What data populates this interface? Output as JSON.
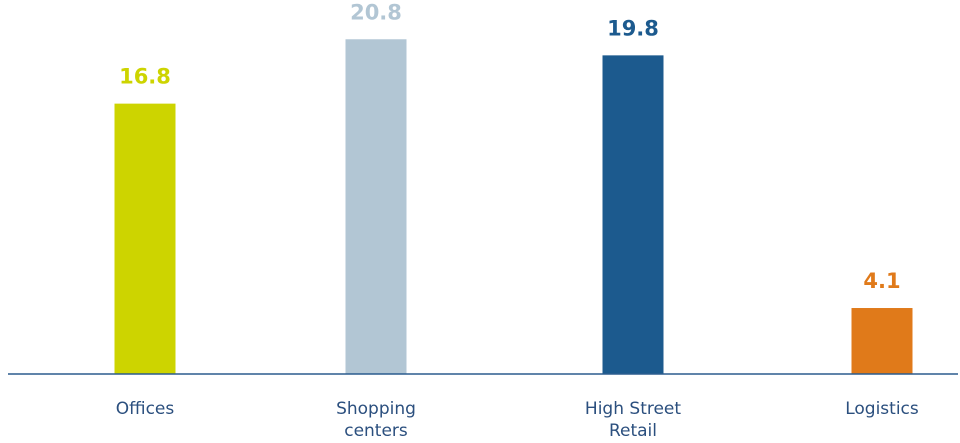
{
  "chart_data": {
    "type": "bar",
    "title": "",
    "xlabel": "",
    "ylabel": "",
    "ylim": [
      0,
      21.5
    ],
    "grid": false,
    "legend": "none",
    "categories": [
      [
        "Offices"
      ],
      [
        "Shopping",
        "centers"
      ],
      [
        "High Street",
        "Retail"
      ],
      [
        "Logistics"
      ]
    ],
    "values": [
      16.8,
      20.8,
      19.8,
      4.1
    ],
    "value_labels": [
      "16.8",
      "20.8",
      "19.8",
      "4.1"
    ],
    "colors": [
      "#cdd400",
      "#b2c6d4",
      "#1c5a8e",
      "#e07a1a"
    ],
    "axis_color": "#2b5c8e"
  }
}
